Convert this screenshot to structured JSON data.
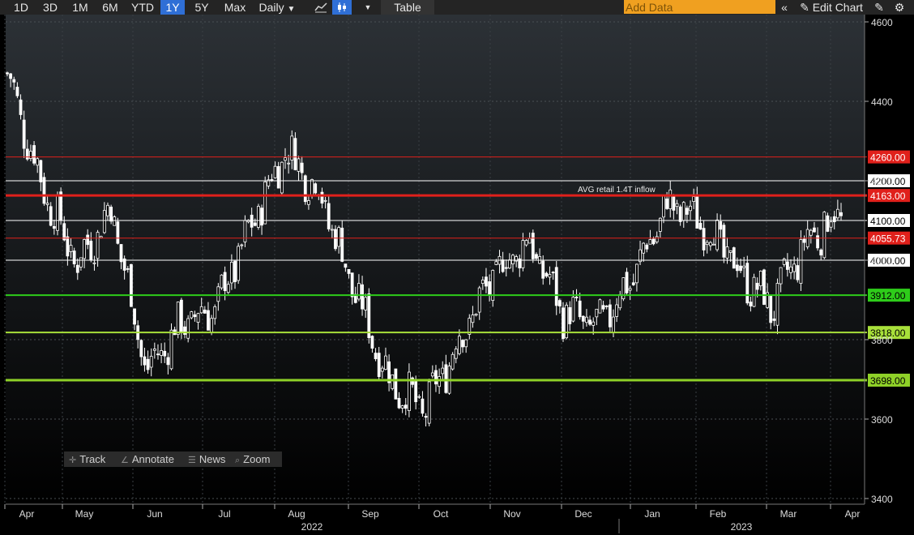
{
  "toolbar": {
    "periods": [
      "1D",
      "3D",
      "1M",
      "6M",
      "YTD",
      "1Y",
      "5Y",
      "Max"
    ],
    "active_period": "1Y",
    "interval": "Daily",
    "table_label": "Table",
    "add_data_placeholder": "Add Data",
    "edit_chart_label": "Edit Chart"
  },
  "tools": {
    "track": "Track",
    "annotate": "Annotate",
    "news": "News",
    "zoom": "Zoom"
  },
  "chart_data": {
    "type": "candlestick",
    "title": "",
    "xlabel": "",
    "ylabel": "",
    "ylim": [
      3385,
      4620
    ],
    "y_ticks": [
      3400,
      3600,
      3800,
      4000,
      4200,
      4400,
      4600
    ],
    "x_ticks": [
      "Apr",
      "May",
      "Jun",
      "Jul",
      "Aug",
      "Sep",
      "Oct",
      "Nov",
      "Dec",
      "Jan",
      "Feb",
      "Mar",
      "Apr"
    ],
    "year_labels": [
      "2022",
      "2023"
    ],
    "grid": true,
    "candle_color": "#ffffff",
    "monthly_path": [
      {
        "month": "Apr",
        "level": 4470
      },
      {
        "month": "Apr",
        "level": 4190
      },
      {
        "month": "May",
        "level": 3990
      },
      {
        "month": "May",
        "level": 4130
      },
      {
        "month": "Jun",
        "level": 3720
      },
      {
        "month": "Jun",
        "level": 3840
      },
      {
        "month": "Jul",
        "level": 3880
      },
      {
        "month": "Jul",
        "level": 4080
      },
      {
        "month": "Aug",
        "level": 4280
      },
      {
        "month": "Aug",
        "level": 4170
      },
      {
        "month": "Sep",
        "level": 3920
      },
      {
        "month": "Sep",
        "level": 3700
      },
      {
        "month": "Oct",
        "level": 3620
      },
      {
        "month": "Oct",
        "level": 3800
      },
      {
        "month": "Nov",
        "level": 3960
      },
      {
        "month": "Nov",
        "level": 4050
      },
      {
        "month": "Dec",
        "level": 3870
      },
      {
        "month": "Dec",
        "level": 3830
      },
      {
        "month": "Jan",
        "level": 3960
      },
      {
        "month": "Jan",
        "level": 4140
      },
      {
        "month": "Feb",
        "level": 4100
      },
      {
        "month": "Feb",
        "level": 3980
      },
      {
        "month": "Mar",
        "level": 3880
      },
      {
        "month": "Mar",
        "level": 4050
      },
      {
        "month": "Apr",
        "level": 4120
      }
    ],
    "levels": [
      {
        "value": 4260.0,
        "label": "4260.00",
        "color": "#e0201b",
        "width": 1
      },
      {
        "value": 4200.0,
        "label": "4200.00",
        "color": "#ffffff",
        "width": 1
      },
      {
        "value": 4163.0,
        "label": "4163.00",
        "color": "#e0201b",
        "width": 3
      },
      {
        "value": 4100.0,
        "label": "4100.00",
        "color": "#ffffff",
        "width": 1
      },
      {
        "value": 4055.73,
        "label": "4055.73",
        "color": "#e0201b",
        "width": 1
      },
      {
        "value": 4000.0,
        "label": "4000.00",
        "color": "#ffffff",
        "width": 1
      },
      {
        "value": 3912.0,
        "label": "3912.00",
        "color": "#2ecc1a",
        "width": 2
      },
      {
        "value": 3818.0,
        "label": "3818.00",
        "color": "#a8e03a",
        "width": 2
      },
      {
        "value": 3698.0,
        "label": "3698.00",
        "color": "#8fd128",
        "width": 3
      }
    ],
    "annotations": [
      {
        "text": "AVG retail 1.4T inflow",
        "level": 4163.0,
        "month": "Dec"
      }
    ]
  }
}
